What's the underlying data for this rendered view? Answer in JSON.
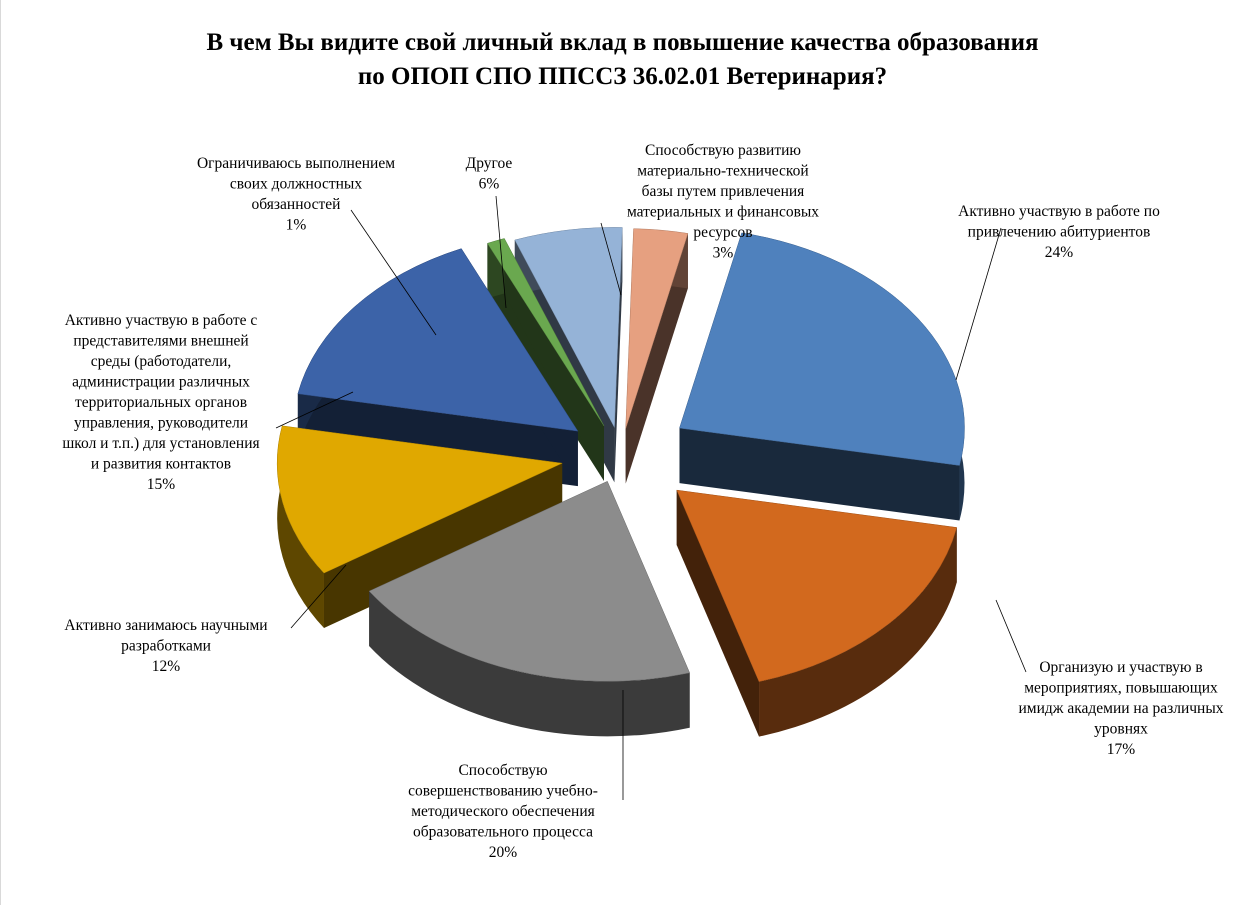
{
  "chart_data": {
    "type": "pie",
    "title_lines": [
      "В чем Вы видите свой личный вклад в повышение качества образования",
      "по ОПОП СПО ППССЗ 36.02.01 Ветеринария?"
    ],
    "slices": [
      {
        "label_lines": [
          "Активно участвую  в работе по",
          "привлечению абитуриентов"
        ],
        "value_text": "24%",
        "value": 24,
        "color": "#4f81bd"
      },
      {
        "label_lines": [
          "Организую и участвую  в",
          "мероприятиях, повышающих",
          "имидж академии на различных",
          "уровнях"
        ],
        "value_text": "17%",
        "value": 17,
        "color": "#d2691e"
      },
      {
        "label_lines": [
          "Способствую",
          "совершенствованию учебно-",
          "методического обеспечения",
          "образовательного процесса"
        ],
        "value_text": "20%",
        "value": 20,
        "color": "#8c8c8c"
      },
      {
        "label_lines": [
          "Активно занимаюсь научными",
          "разработками"
        ],
        "value_text": "12%",
        "value": 12,
        "color": "#e0a800"
      },
      {
        "label_lines": [
          "Активно участвую  в работе с",
          "представителями внешней",
          "среды (работодатели,",
          "администрации различных",
          "территориальных органов",
          "управления,  руководители",
          "школ и т.п.) для установления",
          "и развития контактов"
        ],
        "value_text": "15%",
        "value": 15,
        "color": "#3c63a8"
      },
      {
        "label_lines": [
          "Ограничиваюсь выполнением",
          "своих должностных",
          "обязанностей"
        ],
        "value_text": "1%",
        "value": 1,
        "color": "#6aa84f"
      },
      {
        "label_lines": [
          "Другое"
        ],
        "value_text": "6%",
        "value": 6,
        "color": "#95b3d7"
      },
      {
        "label_lines": [
          "Способствую развитию",
          "материально-технической",
          "базы путем  привлечения",
          "материальных и финансовых",
          "ресурсов"
        ],
        "value_text": "3%",
        "value": 3,
        "color": "#e6a080"
      }
    ]
  }
}
